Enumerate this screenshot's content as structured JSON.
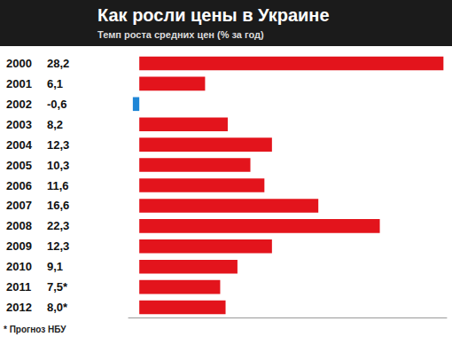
{
  "chart_data": {
    "type": "bar",
    "orientation": "horizontal",
    "title": "Как росли цены в Украине",
    "subtitle": "Темп роста средних цен (% за год)",
    "note": "* Прогноз НБУ",
    "categories": [
      "2000",
      "2001",
      "2002",
      "2003",
      "2004",
      "2005",
      "2006",
      "2007",
      "2008",
      "2009",
      "2010",
      "2011",
      "2012"
    ],
    "values": [
      28.2,
      6.1,
      -0.6,
      8.2,
      12.3,
      10.3,
      11.6,
      16.6,
      22.3,
      12.3,
      9.1,
      7.5,
      8.0
    ],
    "value_labels": [
      "28,2",
      "6,1",
      "-0,6",
      "8,2",
      "12,3",
      "10,3",
      "11,6",
      "16,6",
      "22,3",
      "12,3",
      "9,1",
      "7,5*",
      "8,0*"
    ],
    "colors": [
      "#e3141c",
      "#e3141c",
      "#1f86d6",
      "#e3141c",
      "#e3141c",
      "#e3141c",
      "#e3141c",
      "#e3141c",
      "#e3141c",
      "#e3141c",
      "#e3141c",
      "#e3141c",
      "#e3141c"
    ],
    "xlim": [
      -1,
      28.5
    ],
    "tick_labels": false,
    "grid": false
  }
}
